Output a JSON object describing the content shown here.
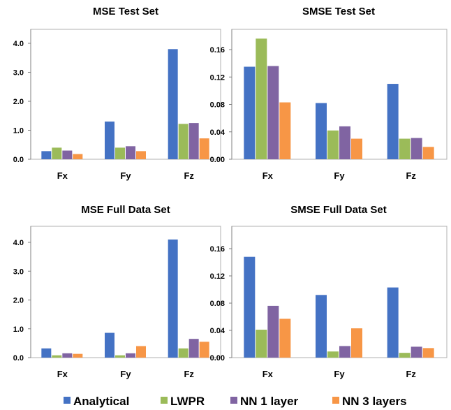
{
  "legend": [
    {
      "name": "Analytical",
      "color": "#4472C4"
    },
    {
      "name": "LWPR",
      "color": "#9BBB59"
    },
    {
      "name": "NN 1 layer",
      "color": "#8064A2"
    },
    {
      "name": "NN 3 layers",
      "color": "#F79646"
    }
  ],
  "chart_data": [
    {
      "type": "bar",
      "title": "MSE Test Set",
      "categories": [
        "Fx",
        "Fy",
        "Fz"
      ],
      "yticks": [
        "0.0",
        "1.0",
        "2.0",
        "3.0",
        "4.0"
      ],
      "ylim": [
        0,
        4.0
      ],
      "grid": false,
      "series": [
        {
          "name": "Analytical",
          "values": [
            0.28,
            1.3,
            3.8
          ]
        },
        {
          "name": "LWPR",
          "values": [
            0.4,
            0.4,
            1.22
          ]
        },
        {
          "name": "NN 1 layer",
          "values": [
            0.3,
            0.45,
            1.25
          ]
        },
        {
          "name": "NN 3 layers",
          "values": [
            0.18,
            0.28,
            0.72
          ]
        }
      ]
    },
    {
      "type": "bar",
      "title": "SMSE Test Set",
      "categories": [
        "Fx",
        "Fy",
        "Fz"
      ],
      "yticks": [
        "0.00",
        "0.04",
        "0.08",
        "0.12",
        "0.16"
      ],
      "ylim": [
        0,
        0.16
      ],
      "grid": false,
      "series": [
        {
          "name": "Analytical",
          "values": [
            0.135,
            0.082,
            0.11
          ]
        },
        {
          "name": "LWPR",
          "values": [
            0.176,
            0.042,
            0.03
          ]
        },
        {
          "name": "NN 1 layer",
          "values": [
            0.136,
            0.048,
            0.031
          ]
        },
        {
          "name": "NN 3 layers",
          "values": [
            0.083,
            0.03,
            0.018
          ]
        }
      ]
    },
    {
      "type": "bar",
      "title": "MSE Full Data Set",
      "categories": [
        "Fx",
        "Fy",
        "Fz"
      ],
      "yticks": [
        "0.0",
        "1.0",
        "2.0",
        "3.0",
        "4.0"
      ],
      "ylim": [
        0,
        4.0
      ],
      "grid": false,
      "series": [
        {
          "name": "Analytical",
          "values": [
            0.32,
            0.86,
            4.1
          ]
        },
        {
          "name": "LWPR",
          "values": [
            0.08,
            0.08,
            0.32
          ]
        },
        {
          "name": "NN 1 layer",
          "values": [
            0.15,
            0.15,
            0.65
          ]
        },
        {
          "name": "NN 3 layers",
          "values": [
            0.13,
            0.4,
            0.55
          ]
        }
      ]
    },
    {
      "type": "bar",
      "title": "SMSE Full Data Set",
      "categories": [
        "Fx",
        "Fy",
        "Fz"
      ],
      "yticks": [
        "0.00",
        "0.04",
        "0.08",
        "0.12",
        "0.16"
      ],
      "ylim": [
        0,
        0.16
      ],
      "grid": false,
      "series": [
        {
          "name": "Analytical",
          "values": [
            0.148,
            0.092,
            0.103
          ]
        },
        {
          "name": "LWPR",
          "values": [
            0.041,
            0.009,
            0.007
          ]
        },
        {
          "name": "NN 1 layer",
          "values": [
            0.076,
            0.017,
            0.016
          ]
        },
        {
          "name": "NN 3 layers",
          "values": [
            0.057,
            0.043,
            0.014
          ]
        }
      ]
    }
  ]
}
